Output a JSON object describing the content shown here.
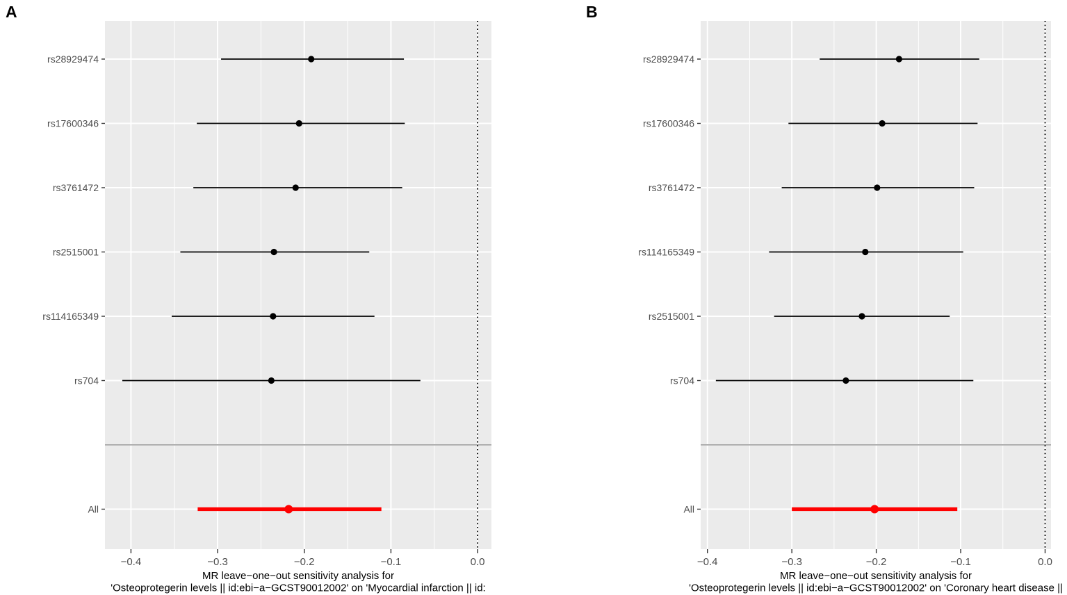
{
  "colors": {
    "panel_bg": "#EBEBEB",
    "grid": "#FFFFFF",
    "separator": "#969696",
    "axis_text": "#4D4D4D",
    "tick_mark": "#333333",
    "point_default": "#000000",
    "all_row_accent": "#FF0000",
    "caption_text": "#000000",
    "reference_line": "#000000"
  },
  "chart_data": [
    {
      "type": "scatter",
      "subtype": "forest-plot-leave-one-out",
      "panel_label": "A",
      "xlabel_lines": [
        "MR leave−one−out sensitivity analysis for",
        "'Osteoprotegerin levels || id:ebi−a−GCST90012002' on 'Myocardial infarction || id:"
      ],
      "xticks": [
        -0.4,
        -0.3,
        -0.2,
        -0.1,
        0.0
      ],
      "xtick_labels": [
        "−0.4",
        "−0.3",
        "−0.2",
        "−0.1",
        "0.0"
      ],
      "xlim": [
        -0.43,
        0.016
      ],
      "vline_x": 0,
      "grid": true,
      "legend": "none",
      "rows": [
        {
          "label": "rs28929474",
          "estimate": -0.192,
          "ci_low": -0.296,
          "ci_high": -0.085,
          "color": "#000000",
          "emphasis": false
        },
        {
          "label": "rs17600346",
          "estimate": -0.206,
          "ci_low": -0.324,
          "ci_high": -0.084,
          "color": "#000000",
          "emphasis": false
        },
        {
          "label": "rs3761472",
          "estimate": -0.21,
          "ci_low": -0.328,
          "ci_high": -0.087,
          "color": "#000000",
          "emphasis": false
        },
        {
          "label": "rs2515001",
          "estimate": -0.235,
          "ci_low": -0.343,
          "ci_high": -0.125,
          "color": "#000000",
          "emphasis": false
        },
        {
          "label": "rs114165349",
          "estimate": -0.236,
          "ci_low": -0.353,
          "ci_high": -0.119,
          "color": "#000000",
          "emphasis": false
        },
        {
          "label": "rs704",
          "estimate": -0.238,
          "ci_low": -0.41,
          "ci_high": -0.066,
          "color": "#000000",
          "emphasis": false
        },
        {
          "label": "All",
          "estimate": -0.218,
          "ci_low": -0.323,
          "ci_high": -0.111,
          "color": "#FF0000",
          "emphasis": true
        }
      ]
    },
    {
      "type": "scatter",
      "subtype": "forest-plot-leave-one-out",
      "panel_label": "B",
      "xlabel_lines": [
        "MR leave−one−out sensitivity analysis for",
        "'Osteoprotegerin levels || id:ebi−a−GCST90012002' on 'Coronary heart disease ||"
      ],
      "xticks": [
        -0.4,
        -0.3,
        -0.2,
        -0.1,
        0.0
      ],
      "xtick_labels": [
        "−0.4",
        "−0.3",
        "−0.2",
        "−0.1",
        "0.0"
      ],
      "xlim": [
        -0.408,
        0.007
      ],
      "vline_x": 0,
      "grid": true,
      "legend": "none",
      "rows": [
        {
          "label": "rs28929474",
          "estimate": -0.173,
          "ci_low": -0.267,
          "ci_high": -0.078,
          "color": "#000000",
          "emphasis": false
        },
        {
          "label": "rs17600346",
          "estimate": -0.193,
          "ci_low": -0.304,
          "ci_high": -0.08,
          "color": "#000000",
          "emphasis": false
        },
        {
          "label": "rs3761472",
          "estimate": -0.199,
          "ci_low": -0.312,
          "ci_high": -0.084,
          "color": "#000000",
          "emphasis": false
        },
        {
          "label": "rs114165349",
          "estimate": -0.213,
          "ci_low": -0.327,
          "ci_high": -0.097,
          "color": "#000000",
          "emphasis": false
        },
        {
          "label": "rs2515001",
          "estimate": -0.217,
          "ci_low": -0.321,
          "ci_high": -0.113,
          "color": "#000000",
          "emphasis": false
        },
        {
          "label": "rs704",
          "estimate": -0.236,
          "ci_low": -0.39,
          "ci_high": -0.085,
          "color": "#000000",
          "emphasis": false
        },
        {
          "label": "All",
          "estimate": -0.202,
          "ci_low": -0.3,
          "ci_high": -0.104,
          "color": "#FF0000",
          "emphasis": true
        }
      ]
    }
  ]
}
